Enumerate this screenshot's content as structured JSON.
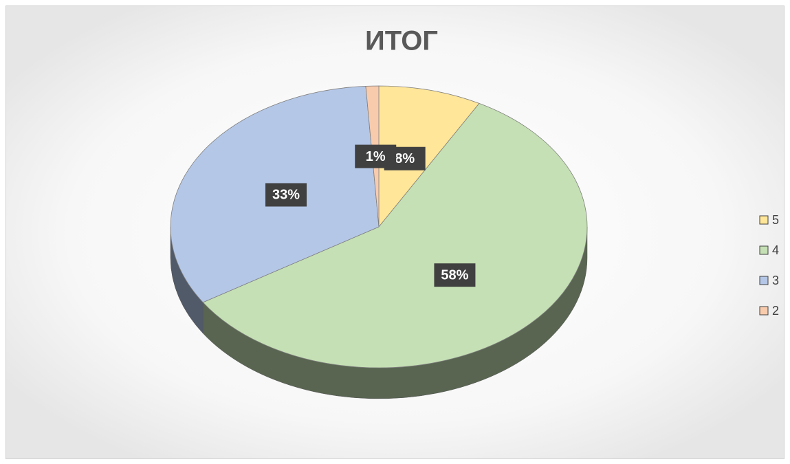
{
  "chart_data": {
    "type": "pie",
    "title": "ИТОГ",
    "categories": [
      "5",
      "4",
      "3",
      "2"
    ],
    "values": [
      8,
      58,
      33,
      1
    ],
    "value_labels": [
      "8%",
      "58%",
      "33%",
      "1%"
    ],
    "colors": [
      "#ffe699",
      "#c5e0b4",
      "#b4c7e7",
      "#f8cbad"
    ],
    "legend": "right"
  }
}
